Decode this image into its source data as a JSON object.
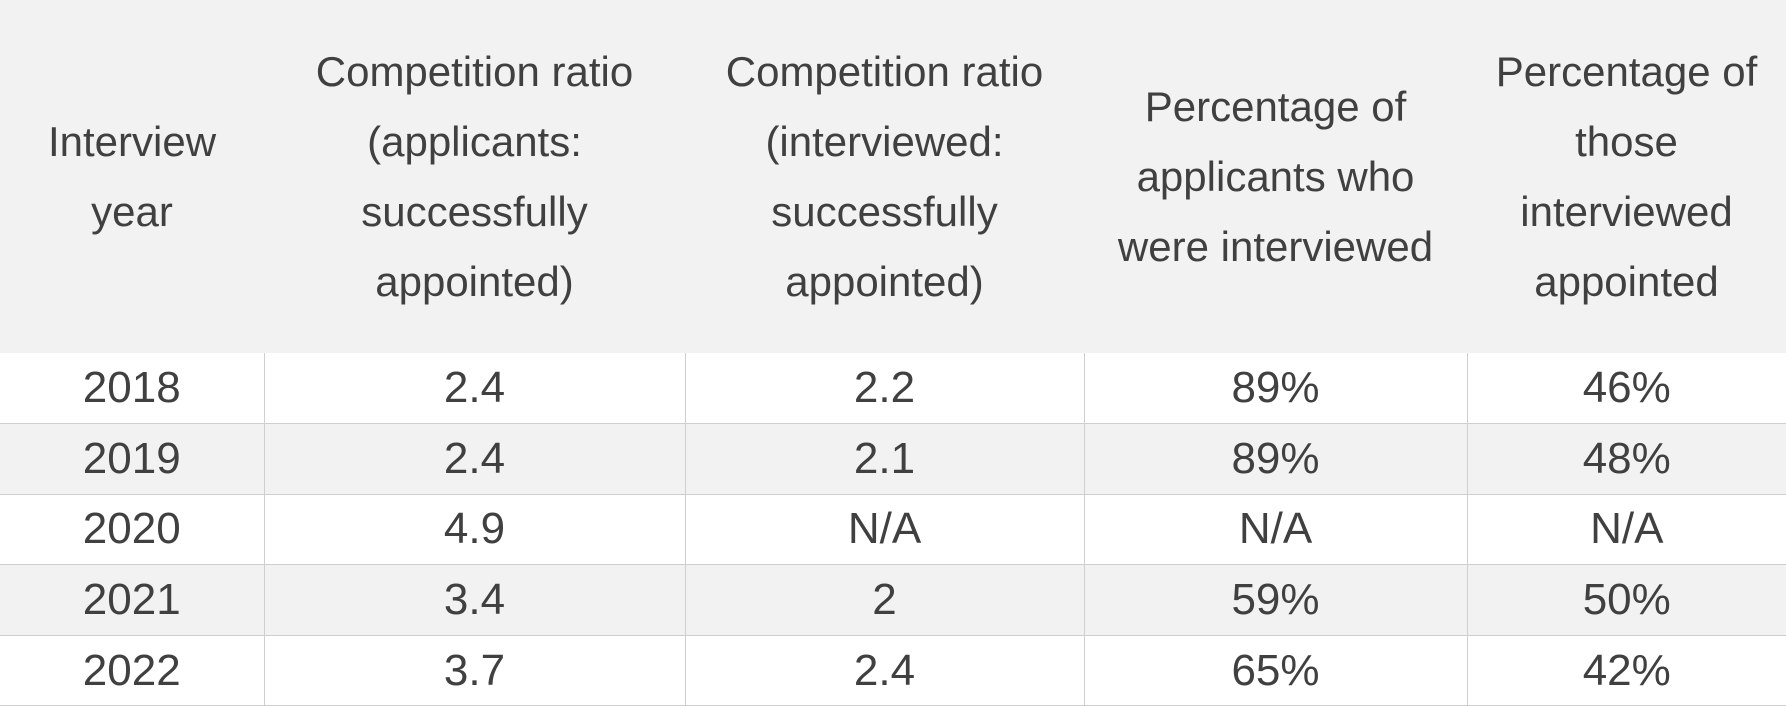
{
  "table": {
    "header": [
      "Interview year",
      "Competition ratio (applicants: successfully appointed)",
      "Competition ratio (interviewed: successfully appointed)",
      "Percentage of applicants who were interviewed",
      "Percentage of those interviewed appointed"
    ],
    "rows": [
      [
        "2018",
        "2.4",
        "2.2",
        "89%",
        "46%"
      ],
      [
        "2019",
        "2.4",
        "2.1",
        "89%",
        "48%"
      ],
      [
        "2020",
        "4.9",
        "N/A",
        "N/A",
        "N/A"
      ],
      [
        "2021",
        "3.4",
        "2",
        "59%",
        "50%"
      ],
      [
        "2022",
        "3.7",
        "2.4",
        "65%",
        "42%"
      ]
    ]
  }
}
